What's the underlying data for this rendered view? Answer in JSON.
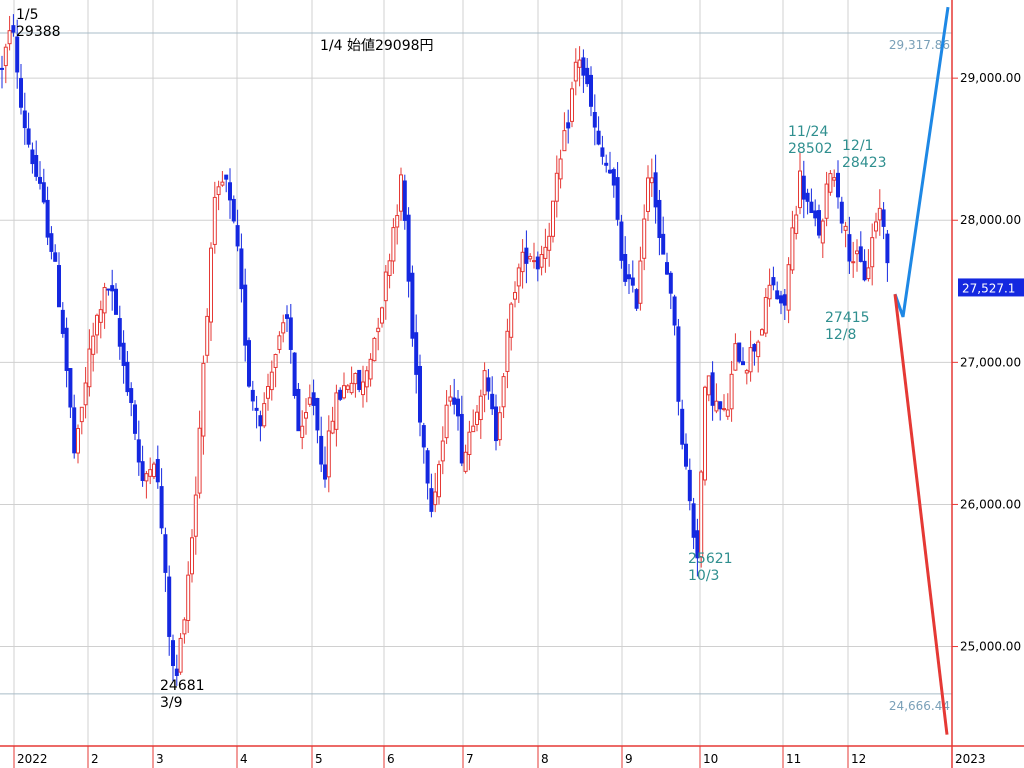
{
  "chart_data": {
    "type": "candlestick",
    "y_range": [
      24300,
      29550
    ],
    "y_ticks": [
      "29,000.00",
      "28,000.00",
      "27,000.00",
      "26,000.00",
      "25,000.00"
    ],
    "y_tick_values": [
      29000,
      28000,
      27000,
      26000,
      25000
    ],
    "x_ticks": [
      "2022",
      "2",
      "3",
      "4",
      "5",
      "6",
      "7",
      "8",
      "9",
      "10",
      "11",
      "12",
      "2023"
    ],
    "reference_lines": [
      {
        "label": "29,317.86",
        "value": 29317.86
      },
      {
        "label": "24,666.44",
        "value": 24666.44
      }
    ],
    "current_price": {
      "label": "27,527.1",
      "value": 27527.1
    },
    "annotations": [
      {
        "text": "1/5",
        "text2": "29388",
        "color": "#000000"
      },
      {
        "text": "1/4 始値29098円",
        "color": "#000000"
      },
      {
        "text": "24681",
        "text2": "3/9",
        "color": "#000000"
      },
      {
        "text": "25621",
        "text2": "10/3",
        "color": "#2f8f8f"
      },
      {
        "text": "11/24",
        "text2": "28502",
        "color": "#2f8f8f"
      },
      {
        "text": "12/1",
        "text2": "28423",
        "color": "#2f8f8f"
      },
      {
        "text": "27415",
        "text2": "12/8",
        "color": "#2f8f8f"
      }
    ],
    "projection_lines": [
      {
        "name": "up",
        "color": "#1e88e5",
        "points": [
          [
            27480,
            0
          ],
          [
            27320,
            1
          ],
          [
            29500,
            2
          ]
        ]
      },
      {
        "name": "down",
        "color": "#e53935",
        "points": [
          [
            27480,
            0
          ],
          [
            24380,
            1
          ]
        ]
      }
    ],
    "colors": {
      "up": "#e53935",
      "down": "#1428e0",
      "grid": "#d0d0d0",
      "axis": "#e53935",
      "ref": "#a9bcc8"
    }
  }
}
